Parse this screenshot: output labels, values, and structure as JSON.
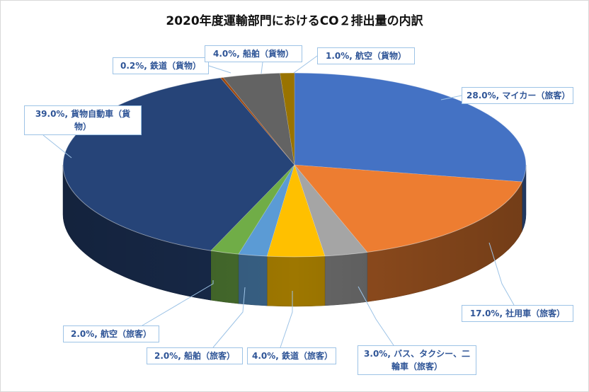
{
  "chart_data": {
    "type": "pie",
    "title": "2020年度運輸部門におけるCO２排出量の内訳",
    "unit": "%",
    "slices": [
      {
        "label": "マイカー（旅客）",
        "value": 28.0,
        "display": "28.0%, マイカー（旅客）",
        "color": "#4472c4"
      },
      {
        "label": "社用車（旅客）",
        "value": 17.0,
        "display": "17.0%, 社用車（旅客）",
        "color": "#ed7d31"
      },
      {
        "label": "バス、タクシー、二輪車（旅客）",
        "value": 3.0,
        "display": "3.0%, バス、タクシー、二輪車（旅客）",
        "color": "#a5a5a5"
      },
      {
        "label": "鉄道（旅客）",
        "value": 4.0,
        "display": "4.0%, 鉄道（旅客）",
        "color": "#ffc000"
      },
      {
        "label": "船舶（旅客）",
        "value": 2.0,
        "display": "2.0%, 船舶（旅客）",
        "color": "#5b9bd5"
      },
      {
        "label": "航空（旅客）",
        "value": 2.0,
        "display": "2.0%, 航空（旅客）",
        "color": "#70ad47"
      },
      {
        "label": "貨物自動車（貨物）",
        "value": 39.0,
        "display": "39.0%, 貨物自動車（貨物）",
        "color": "#264478"
      },
      {
        "label": "鉄道（貨物）",
        "value": 0.2,
        "display": "0.2%, 鉄道（貨物）",
        "color": "#9e480e"
      },
      {
        "label": "船舶（貨物）",
        "value": 4.0,
        "display": "4.0%, 船舶（貨物）",
        "color": "#636363"
      },
      {
        "label": "航空（貨物）",
        "value": 1.0,
        "display": "1.0%, 航空（貨物）",
        "color": "#997300"
      }
    ],
    "style": "3d-pie",
    "legend": "none",
    "data_labels": "callouts"
  }
}
